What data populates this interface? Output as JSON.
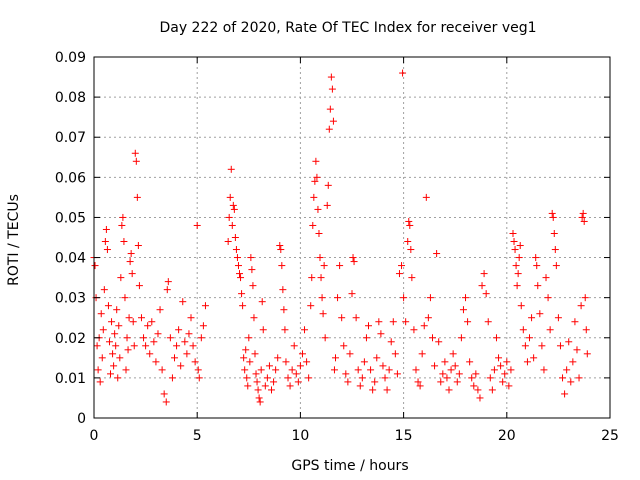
{
  "chart_data": {
    "type": "scatter",
    "title": "Day 222 of 2020, Rate Of TEC Index for receiver veg1",
    "xlabel": "GPS time / hours",
    "ylabel": "ROTI / TECUs",
    "xlim": [
      0,
      25
    ],
    "ylim": [
      0,
      0.09
    ],
    "xticks": [
      0,
      5,
      10,
      15,
      20,
      25
    ],
    "yticks": [
      0,
      0.01,
      0.02,
      0.03,
      0.04,
      0.05,
      0.06,
      0.07,
      0.08,
      0.09
    ],
    "xtick_labels": [
      "0",
      "5",
      "10",
      "15",
      "20",
      "25"
    ],
    "ytick_labels": [
      "0",
      "0.01",
      "0.02",
      "0.03",
      "0.04",
      "0.05",
      "0.06",
      "0.07",
      "0.08",
      "0.09"
    ],
    "grid": true,
    "marker": "+",
    "color": "#ff0000",
    "series": [
      {
        "name": "veg1",
        "points": [
          [
            0.0,
            0.04
          ],
          [
            0.05,
            0.038
          ],
          [
            0.1,
            0.03
          ],
          [
            0.15,
            0.018
          ],
          [
            0.2,
            0.012
          ],
          [
            0.25,
            0.02
          ],
          [
            0.3,
            0.009
          ],
          [
            0.35,
            0.026
          ],
          [
            0.4,
            0.015
          ],
          [
            0.45,
            0.022
          ],
          [
            0.5,
            0.032
          ],
          [
            0.55,
            0.044
          ],
          [
            0.6,
            0.047
          ],
          [
            0.65,
            0.042
          ],
          [
            0.7,
            0.028
          ],
          [
            0.75,
            0.019
          ],
          [
            0.8,
            0.011
          ],
          [
            0.85,
            0.024
          ],
          [
            0.9,
            0.016
          ],
          [
            0.95,
            0.013
          ],
          [
            1.0,
            0.021
          ],
          [
            1.05,
            0.018
          ],
          [
            1.1,
            0.027
          ],
          [
            1.15,
            0.01
          ],
          [
            1.2,
            0.023
          ],
          [
            1.25,
            0.015
          ],
          [
            1.3,
            0.035
          ],
          [
            1.35,
            0.048
          ],
          [
            1.4,
            0.05
          ],
          [
            1.45,
            0.044
          ],
          [
            1.5,
            0.03
          ],
          [
            1.55,
            0.012
          ],
          [
            1.6,
            0.02
          ],
          [
            1.65,
            0.017
          ],
          [
            1.7,
            0.025
          ],
          [
            1.75,
            0.039
          ],
          [
            1.8,
            0.041
          ],
          [
            1.85,
            0.036
          ],
          [
            1.9,
            0.024
          ],
          [
            1.95,
            0.018
          ],
          [
            2.0,
            0.066
          ],
          [
            2.05,
            0.064
          ],
          [
            2.1,
            0.055
          ],
          [
            2.15,
            0.043
          ],
          [
            2.2,
            0.033
          ],
          [
            2.3,
            0.025
          ],
          [
            2.4,
            0.02
          ],
          [
            2.5,
            0.018
          ],
          [
            2.6,
            0.023
          ],
          [
            2.7,
            0.016
          ],
          [
            2.8,
            0.024
          ],
          [
            2.9,
            0.019
          ],
          [
            3.0,
            0.014
          ],
          [
            3.1,
            0.021
          ],
          [
            3.2,
            0.027
          ],
          [
            3.3,
            0.012
          ],
          [
            3.4,
            0.006
          ],
          [
            3.5,
            0.004
          ],
          [
            3.55,
            0.032
          ],
          [
            3.6,
            0.034
          ],
          [
            3.7,
            0.02
          ],
          [
            3.8,
            0.01
          ],
          [
            3.9,
            0.015
          ],
          [
            4.0,
            0.018
          ],
          [
            4.1,
            0.022
          ],
          [
            4.2,
            0.013
          ],
          [
            4.3,
            0.029
          ],
          [
            4.4,
            0.019
          ],
          [
            4.5,
            0.016
          ],
          [
            4.6,
            0.021
          ],
          [
            4.7,
            0.025
          ],
          [
            4.8,
            0.018
          ],
          [
            4.9,
            0.014
          ],
          [
            5.0,
            0.048
          ],
          [
            5.05,
            0.012
          ],
          [
            5.1,
            0.01
          ],
          [
            5.2,
            0.02
          ],
          [
            5.3,
            0.023
          ],
          [
            5.4,
            0.028
          ],
          [
            6.5,
            0.044
          ],
          [
            6.55,
            0.05
          ],
          [
            6.6,
            0.055
          ],
          [
            6.65,
            0.062
          ],
          [
            6.7,
            0.048
          ],
          [
            6.75,
            0.053
          ],
          [
            6.8,
            0.052
          ],
          [
            6.85,
            0.045
          ],
          [
            6.9,
            0.042
          ],
          [
            6.95,
            0.04
          ],
          [
            7.0,
            0.038
          ],
          [
            7.05,
            0.036
          ],
          [
            7.1,
            0.035
          ],
          [
            7.15,
            0.031
          ],
          [
            7.2,
            0.028
          ],
          [
            7.25,
            0.015
          ],
          [
            7.3,
            0.012
          ],
          [
            7.35,
            0.017
          ],
          [
            7.4,
            0.01
          ],
          [
            7.45,
            0.008
          ],
          [
            7.5,
            0.02
          ],
          [
            7.55,
            0.014
          ],
          [
            7.6,
            0.04
          ],
          [
            7.65,
            0.037
          ],
          [
            7.7,
            0.033
          ],
          [
            7.75,
            0.025
          ],
          [
            7.8,
            0.016
          ],
          [
            7.85,
            0.011
          ],
          [
            7.9,
            0.009
          ],
          [
            7.95,
            0.007
          ],
          [
            8.0,
            0.005
          ],
          [
            8.05,
            0.004
          ],
          [
            8.1,
            0.012
          ],
          [
            8.15,
            0.029
          ],
          [
            8.2,
            0.022
          ],
          [
            8.3,
            0.008
          ],
          [
            8.4,
            0.01
          ],
          [
            8.5,
            0.013
          ],
          [
            8.6,
            0.007
          ],
          [
            8.7,
            0.009
          ],
          [
            8.8,
            0.012
          ],
          [
            8.9,
            0.015
          ],
          [
            9.0,
            0.043
          ],
          [
            9.05,
            0.042
          ],
          [
            9.1,
            0.038
          ],
          [
            9.15,
            0.032
          ],
          [
            9.2,
            0.027
          ],
          [
            9.25,
            0.022
          ],
          [
            9.3,
            0.014
          ],
          [
            9.4,
            0.01
          ],
          [
            9.5,
            0.008
          ],
          [
            9.6,
            0.012
          ],
          [
            9.7,
            0.018
          ],
          [
            9.8,
            0.011
          ],
          [
            9.9,
            0.009
          ],
          [
            10.0,
            0.013
          ],
          [
            10.1,
            0.016
          ],
          [
            10.2,
            0.022
          ],
          [
            10.3,
            0.014
          ],
          [
            10.4,
            0.01
          ],
          [
            10.5,
            0.028
          ],
          [
            10.55,
            0.035
          ],
          [
            10.6,
            0.048
          ],
          [
            10.65,
            0.055
          ],
          [
            10.7,
            0.059
          ],
          [
            10.75,
            0.064
          ],
          [
            10.8,
            0.06
          ],
          [
            10.85,
            0.052
          ],
          [
            10.9,
            0.046
          ],
          [
            10.95,
            0.04
          ],
          [
            11.0,
            0.035
          ],
          [
            11.05,
            0.03
          ],
          [
            11.1,
            0.026
          ],
          [
            11.15,
            0.038
          ],
          [
            11.2,
            0.02
          ],
          [
            11.3,
            0.053
          ],
          [
            11.35,
            0.058
          ],
          [
            11.4,
            0.072
          ],
          [
            11.45,
            0.077
          ],
          [
            11.5,
            0.085
          ],
          [
            11.55,
            0.082
          ],
          [
            11.6,
            0.074
          ],
          [
            11.65,
            0.012
          ],
          [
            11.7,
            0.015
          ],
          [
            11.8,
            0.03
          ],
          [
            11.9,
            0.038
          ],
          [
            12.0,
            0.025
          ],
          [
            12.1,
            0.018
          ],
          [
            12.2,
            0.011
          ],
          [
            12.3,
            0.009
          ],
          [
            12.4,
            0.016
          ],
          [
            12.5,
            0.031
          ],
          [
            12.55,
            0.04
          ],
          [
            12.6,
            0.039
          ],
          [
            12.7,
            0.025
          ],
          [
            12.8,
            0.012
          ],
          [
            12.9,
            0.008
          ],
          [
            13.0,
            0.01
          ],
          [
            13.1,
            0.014
          ],
          [
            13.2,
            0.02
          ],
          [
            13.3,
            0.023
          ],
          [
            13.4,
            0.012
          ],
          [
            13.5,
            0.007
          ],
          [
            13.6,
            0.009
          ],
          [
            13.7,
            0.015
          ],
          [
            13.8,
            0.024
          ],
          [
            13.9,
            0.021
          ],
          [
            14.0,
            0.013
          ],
          [
            14.1,
            0.01
          ],
          [
            14.2,
            0.007
          ],
          [
            14.3,
            0.012
          ],
          [
            14.4,
            0.019
          ],
          [
            14.5,
            0.024
          ],
          [
            14.6,
            0.016
          ],
          [
            14.7,
            0.011
          ],
          [
            14.8,
            0.036
          ],
          [
            14.9,
            0.038
          ],
          [
            14.95,
            0.086
          ],
          [
            15.0,
            0.03
          ],
          [
            15.1,
            0.024
          ],
          [
            15.2,
            0.044
          ],
          [
            15.25,
            0.049
          ],
          [
            15.3,
            0.048
          ],
          [
            15.35,
            0.042
          ],
          [
            15.4,
            0.035
          ],
          [
            15.5,
            0.022
          ],
          [
            15.6,
            0.012
          ],
          [
            15.7,
            0.009
          ],
          [
            15.8,
            0.008
          ],
          [
            15.9,
            0.016
          ],
          [
            16.0,
            0.023
          ],
          [
            16.1,
            0.055
          ],
          [
            16.2,
            0.025
          ],
          [
            16.3,
            0.03
          ],
          [
            16.4,
            0.02
          ],
          [
            16.5,
            0.013
          ],
          [
            16.6,
            0.041
          ],
          [
            16.7,
            0.019
          ],
          [
            16.8,
            0.009
          ],
          [
            16.9,
            0.011
          ],
          [
            17.0,
            0.014
          ],
          [
            17.1,
            0.01
          ],
          [
            17.2,
            0.007
          ],
          [
            17.3,
            0.012
          ],
          [
            17.4,
            0.016
          ],
          [
            17.5,
            0.013
          ],
          [
            17.6,
            0.009
          ],
          [
            17.7,
            0.011
          ],
          [
            17.8,
            0.02
          ],
          [
            17.9,
            0.027
          ],
          [
            18.0,
            0.03
          ],
          [
            18.1,
            0.024
          ],
          [
            18.2,
            0.014
          ],
          [
            18.3,
            0.01
          ],
          [
            18.4,
            0.008
          ],
          [
            18.5,
            0.011
          ],
          [
            18.6,
            0.007
          ],
          [
            18.7,
            0.005
          ],
          [
            18.8,
            0.033
          ],
          [
            18.9,
            0.036
          ],
          [
            19.0,
            0.031
          ],
          [
            19.1,
            0.024
          ],
          [
            19.2,
            0.01
          ],
          [
            19.3,
            0.007
          ],
          [
            19.4,
            0.012
          ],
          [
            19.5,
            0.02
          ],
          [
            19.6,
            0.015
          ],
          [
            19.7,
            0.013
          ],
          [
            19.8,
            0.009
          ],
          [
            19.9,
            0.011
          ],
          [
            20.0,
            0.014
          ],
          [
            20.1,
            0.008
          ],
          [
            20.2,
            0.012
          ],
          [
            20.3,
            0.046
          ],
          [
            20.35,
            0.044
          ],
          [
            20.4,
            0.042
          ],
          [
            20.45,
            0.038
          ],
          [
            20.5,
            0.033
          ],
          [
            20.55,
            0.036
          ],
          [
            20.6,
            0.04
          ],
          [
            20.65,
            0.043
          ],
          [
            20.7,
            0.028
          ],
          [
            20.8,
            0.022
          ],
          [
            20.9,
            0.018
          ],
          [
            21.0,
            0.014
          ],
          [
            21.1,
            0.02
          ],
          [
            21.2,
            0.025
          ],
          [
            21.3,
            0.015
          ],
          [
            21.4,
            0.04
          ],
          [
            21.45,
            0.038
          ],
          [
            21.5,
            0.033
          ],
          [
            21.6,
            0.026
          ],
          [
            21.7,
            0.018
          ],
          [
            21.8,
            0.012
          ],
          [
            21.9,
            0.035
          ],
          [
            22.0,
            0.03
          ],
          [
            22.1,
            0.022
          ],
          [
            22.2,
            0.051
          ],
          [
            22.25,
            0.05
          ],
          [
            22.3,
            0.046
          ],
          [
            22.35,
            0.042
          ],
          [
            22.4,
            0.038
          ],
          [
            22.5,
            0.025
          ],
          [
            22.6,
            0.018
          ],
          [
            22.7,
            0.01
          ],
          [
            22.8,
            0.006
          ],
          [
            22.9,
            0.012
          ],
          [
            23.0,
            0.019
          ],
          [
            23.1,
            0.009
          ],
          [
            23.2,
            0.014
          ],
          [
            23.3,
            0.024
          ],
          [
            23.4,
            0.017
          ],
          [
            23.5,
            0.01
          ],
          [
            23.6,
            0.028
          ],
          [
            23.65,
            0.05
          ],
          [
            23.7,
            0.051
          ],
          [
            23.75,
            0.049
          ],
          [
            23.8,
            0.03
          ],
          [
            23.85,
            0.022
          ],
          [
            23.9,
            0.016
          ]
        ]
      }
    ]
  }
}
